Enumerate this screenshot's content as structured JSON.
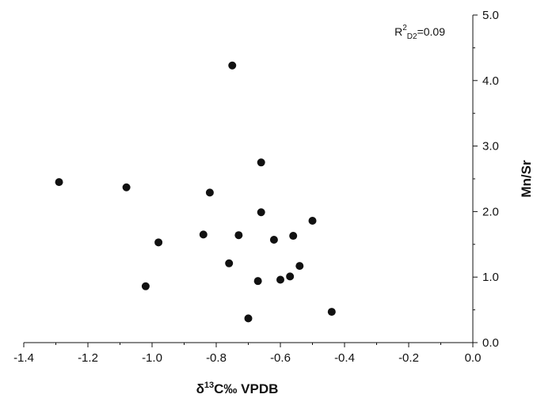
{
  "chart_data": {
    "type": "scatter",
    "title": "",
    "xlabel": {
      "delta": "δ",
      "sup": "13",
      "rest": "C‰ VPDB"
    },
    "ylabel": "Mn/Sr",
    "xlim": [
      -1.4,
      0.0
    ],
    "ylim": [
      0.0,
      5.0
    ],
    "x_ticks": [
      "-1.4",
      "-1.2",
      "-1.0",
      "-0.8",
      "-0.6",
      "-0.4",
      "-0.2",
      "0.0"
    ],
    "y_ticks": [
      "0.0",
      "1.0",
      "2.0",
      "3.0",
      "4.0",
      "5.0"
    ],
    "grid": false,
    "annotation": {
      "base": "R",
      "sup": "2",
      "sub": "D2",
      "rest": "=0.09"
    },
    "marker_color": "#111111",
    "points": [
      {
        "x": -1.29,
        "y": 2.45
      },
      {
        "x": -1.08,
        "y": 2.37
      },
      {
        "x": -1.02,
        "y": 0.86
      },
      {
        "x": -0.98,
        "y": 1.53
      },
      {
        "x": -0.84,
        "y": 1.65
      },
      {
        "x": -0.82,
        "y": 2.29
      },
      {
        "x": -0.76,
        "y": 1.21
      },
      {
        "x": -0.75,
        "y": 4.23
      },
      {
        "x": -0.73,
        "y": 1.64
      },
      {
        "x": -0.7,
        "y": 0.37
      },
      {
        "x": -0.67,
        "y": 0.94
      },
      {
        "x": -0.66,
        "y": 2.75
      },
      {
        "x": -0.66,
        "y": 1.99
      },
      {
        "x": -0.62,
        "y": 1.57
      },
      {
        "x": -0.6,
        "y": 0.96
      },
      {
        "x": -0.57,
        "y": 1.01
      },
      {
        "x": -0.56,
        "y": 1.63
      },
      {
        "x": -0.54,
        "y": 1.17
      },
      {
        "x": -0.5,
        "y": 1.86
      },
      {
        "x": -0.44,
        "y": 0.47
      }
    ]
  }
}
